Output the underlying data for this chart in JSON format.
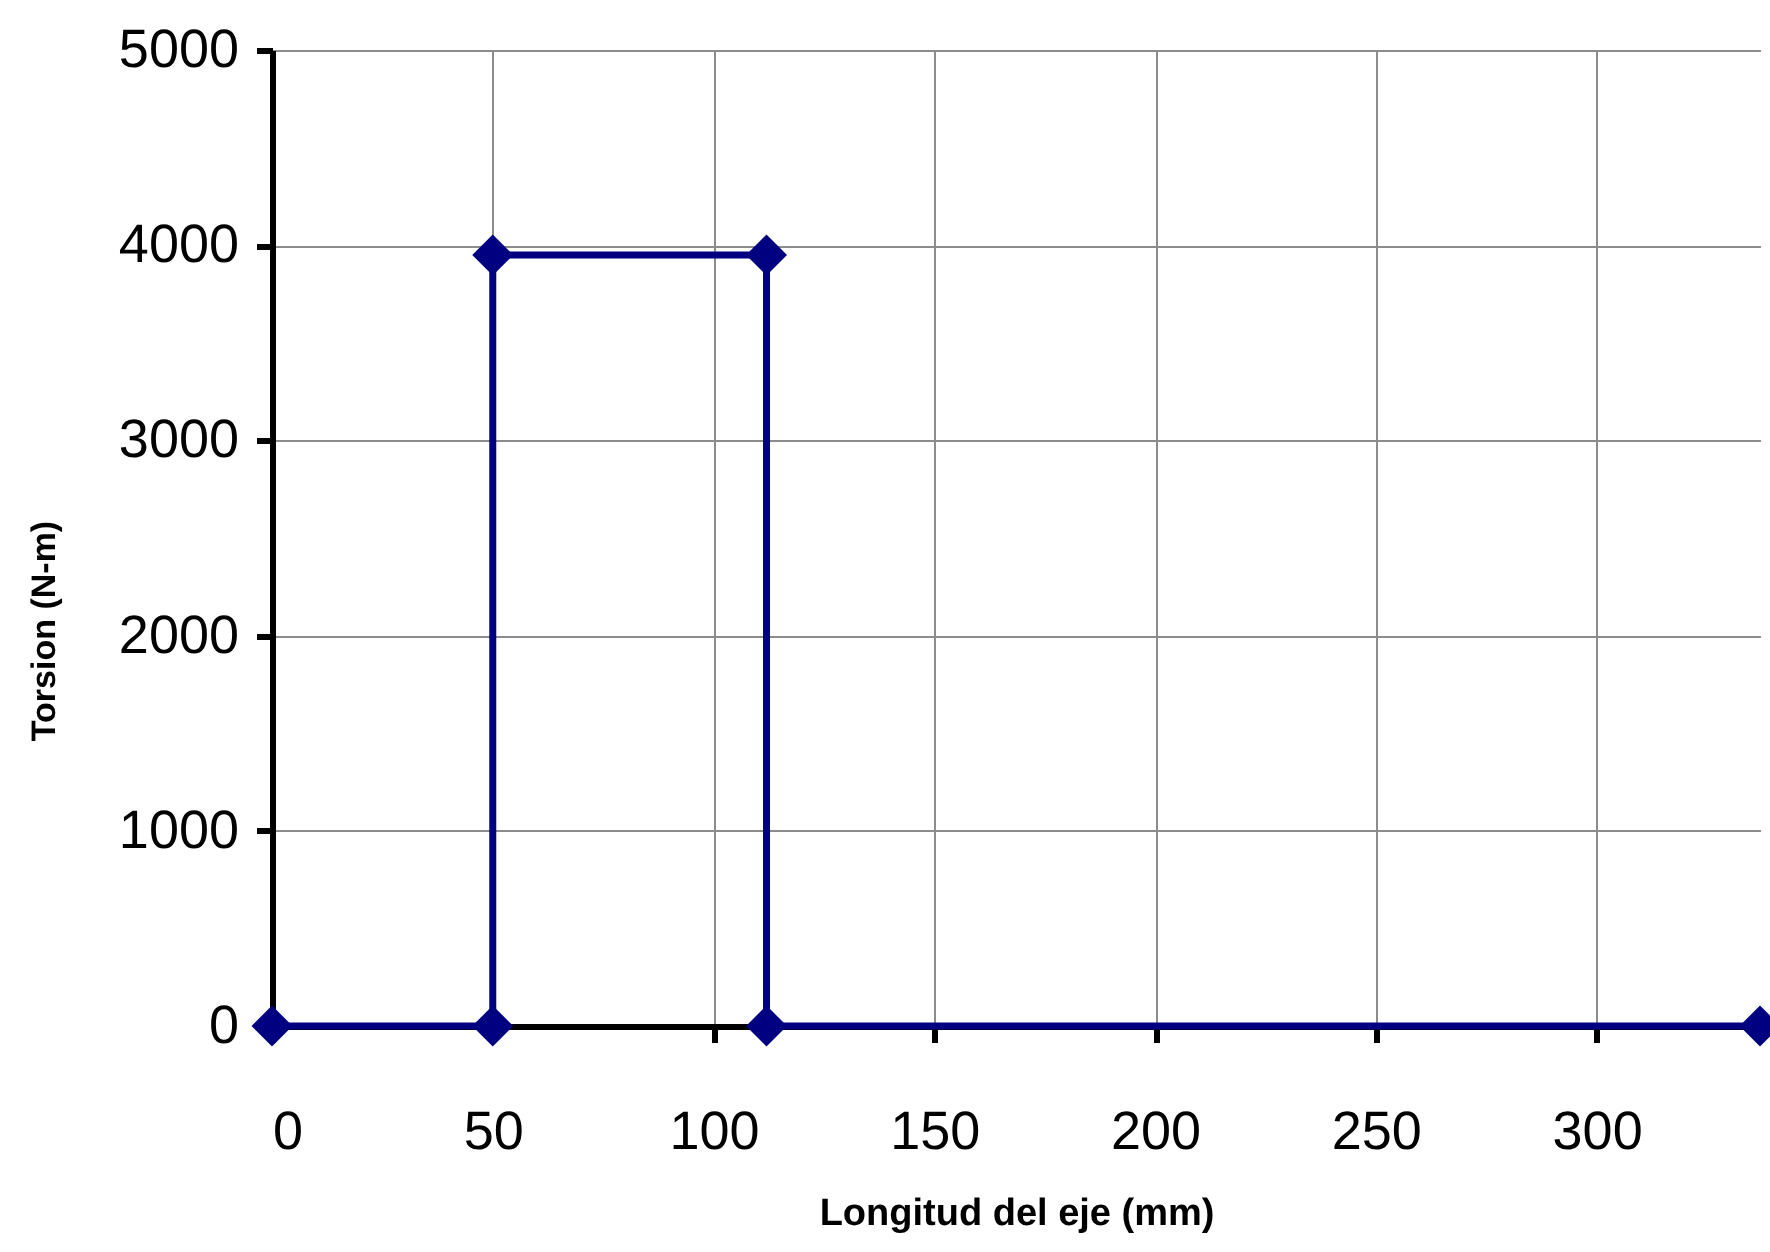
{
  "chart_data": {
    "type": "line",
    "xlabel": "Longitud del eje (mm)",
    "ylabel": "Torsion  (N-m)",
    "x": [
      0,
      50,
      50,
      112,
      112,
      337
    ],
    "series": [
      {
        "color": "#000080",
        "values": [
          0,
          0,
          3950,
          3950,
          0,
          0
        ]
      }
    ],
    "xlim": [
      0,
      337
    ],
    "ylim": [
      0,
      5000
    ],
    "xticks": [
      0,
      50,
      100,
      150,
      200,
      250,
      300
    ],
    "yticks": [
      0,
      1000,
      2000,
      3000,
      4000,
      5000
    ],
    "grid": true,
    "marker": "diamond",
    "line_style": "solid"
  }
}
